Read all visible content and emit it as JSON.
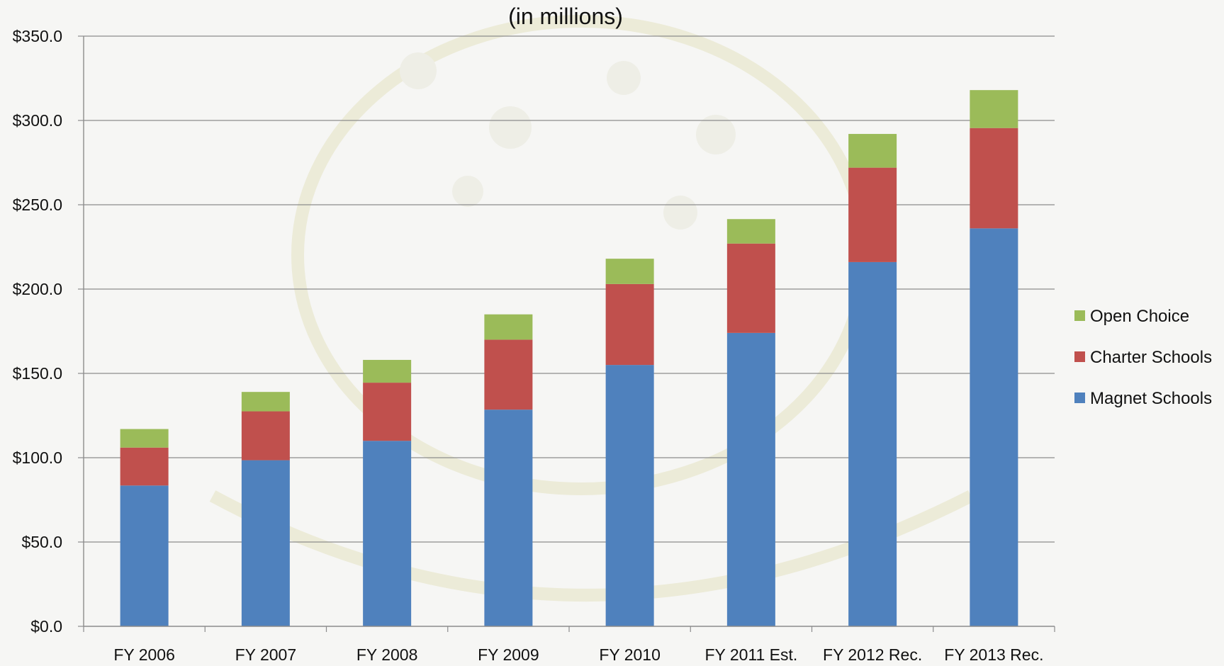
{
  "chart_data": {
    "type": "bar",
    "stacked": true,
    "subtitle": "(in millions)",
    "categories": [
      "FY 2006",
      "FY 2007",
      "FY 2008",
      "FY 2009",
      "FY 2010",
      "FY 2011 Est.",
      "FY 2012 Rec.",
      "FY 2013 Rec."
    ],
    "series": [
      {
        "name": "Magnet Schools",
        "color": "#4f81bd",
        "values": [
          83.5,
          98.5,
          110.0,
          128.5,
          155.0,
          174.0,
          216.0,
          236.0
        ]
      },
      {
        "name": "Charter Schools",
        "color": "#c0504d",
        "values": [
          22.5,
          29.0,
          34.5,
          41.5,
          48.0,
          53.0,
          56.0,
          59.5
        ]
      },
      {
        "name": "Open Choice",
        "color": "#9bbb59",
        "values": [
          11.0,
          11.5,
          13.5,
          15.0,
          15.0,
          14.5,
          20.0,
          22.5
        ]
      }
    ],
    "y_ticks": [
      "$0.0",
      "$50.0",
      "$100.0",
      "$150.0",
      "$200.0",
      "$250.0",
      "$300.0",
      "$350.0"
    ],
    "ylim": [
      0,
      350
    ],
    "grid": true,
    "legend_position": "right",
    "legend_order": [
      "Open Choice",
      "Charter Schools",
      "Magnet Schools"
    ]
  }
}
